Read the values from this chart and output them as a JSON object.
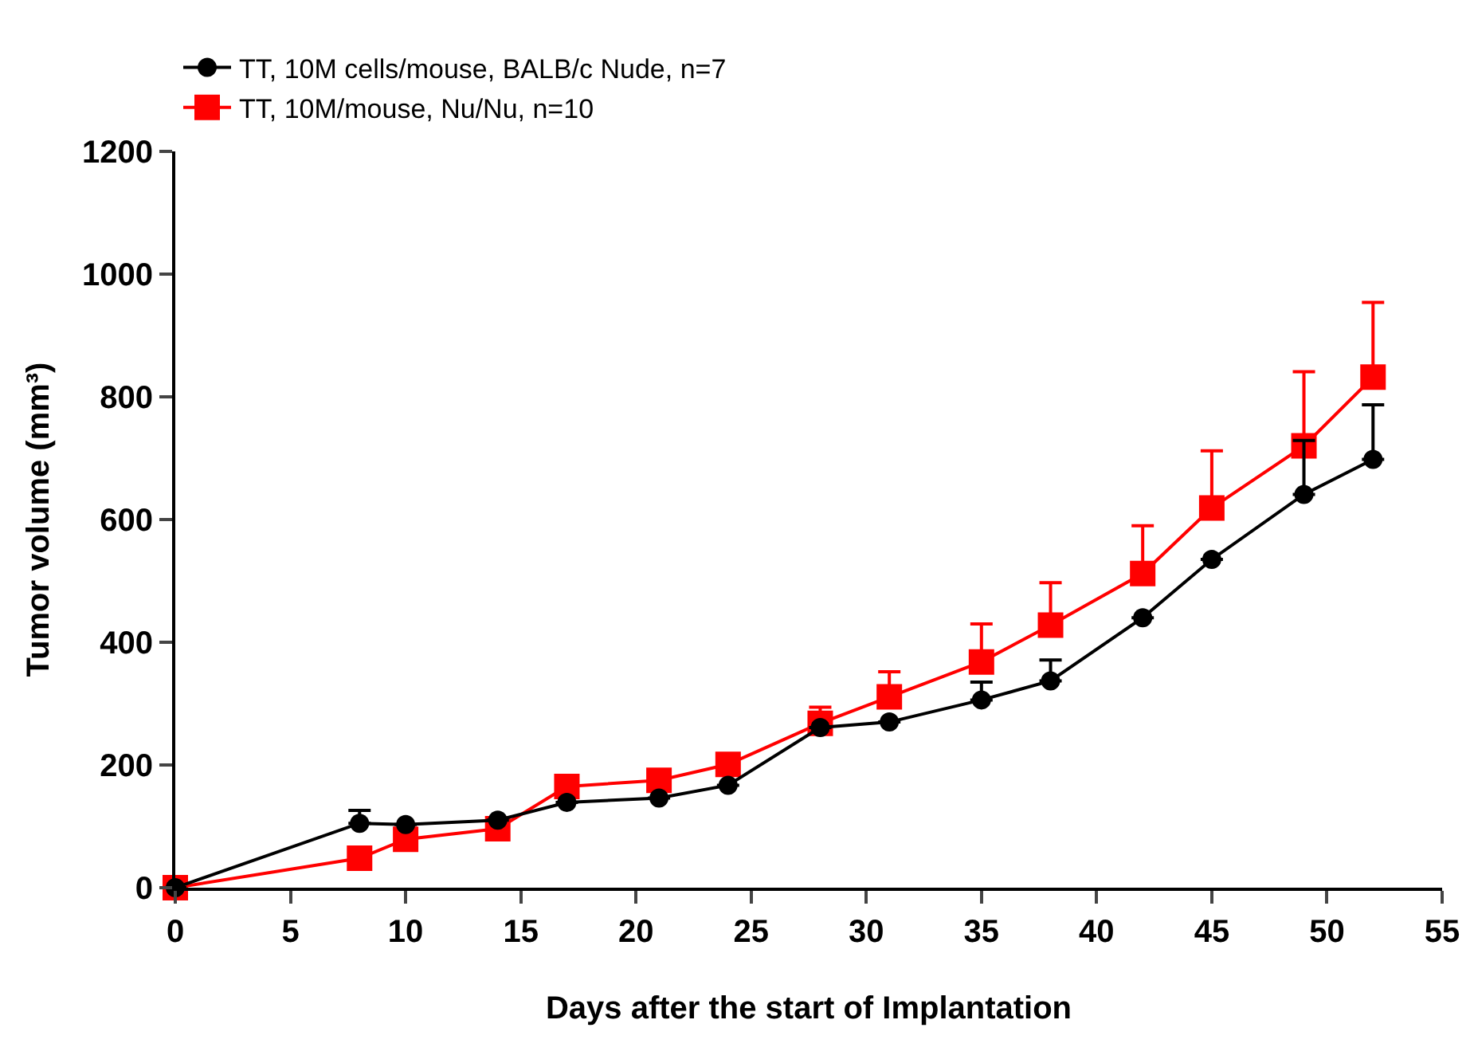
{
  "chart_data": {
    "type": "line",
    "xlabel": "Days after the start of Implantation",
    "ylabel": "Tumor volume (mm³)",
    "x": [
      0,
      8,
      10,
      14,
      17,
      21,
      24,
      28,
      31,
      35,
      38,
      42,
      45,
      49,
      52
    ],
    "xlim": [
      0,
      55
    ],
    "xticks": [
      0,
      5,
      10,
      15,
      20,
      25,
      30,
      35,
      40,
      45,
      50,
      55
    ],
    "ylim": [
      0,
      1200
    ],
    "yticks": [
      0,
      200,
      400,
      600,
      800,
      1000,
      1200
    ],
    "grid": false,
    "legend": "top left",
    "series": [
      {
        "name": "TT, 10M cells/mouse, BALB/c Nude, n=7",
        "color": "#000000",
        "marker": "circle",
        "values": [
          0,
          105,
          103,
          110,
          139,
          146,
          167,
          261,
          270,
          306,
          337,
          440,
          535,
          641,
          698
        ],
        "errors": [
          null,
          [
            105,
            126
          ],
          null,
          null,
          null,
          null,
          null,
          null,
          null,
          [
            306,
            335
          ],
          [
            337,
            371
          ],
          null,
          null,
          [
            641,
            729
          ],
          [
            698,
            787
          ]
        ]
      },
      {
        "name": "TT, 10M/mouse, Nu/Nu, n=10",
        "color": "#ff0000",
        "marker": "square",
        "values": [
          0,
          48,
          79,
          96,
          165,
          175,
          201,
          268,
          311,
          368,
          428,
          512,
          619,
          720,
          832
        ],
        "errors": [
          null,
          null,
          null,
          null,
          null,
          null,
          null,
          [
            268,
            294
          ],
          [
            311,
            352
          ],
          [
            368,
            430
          ],
          [
            428,
            497
          ],
          [
            512,
            590
          ],
          [
            619,
            712
          ],
          [
            720,
            841
          ],
          [
            832,
            954
          ]
        ]
      }
    ]
  }
}
